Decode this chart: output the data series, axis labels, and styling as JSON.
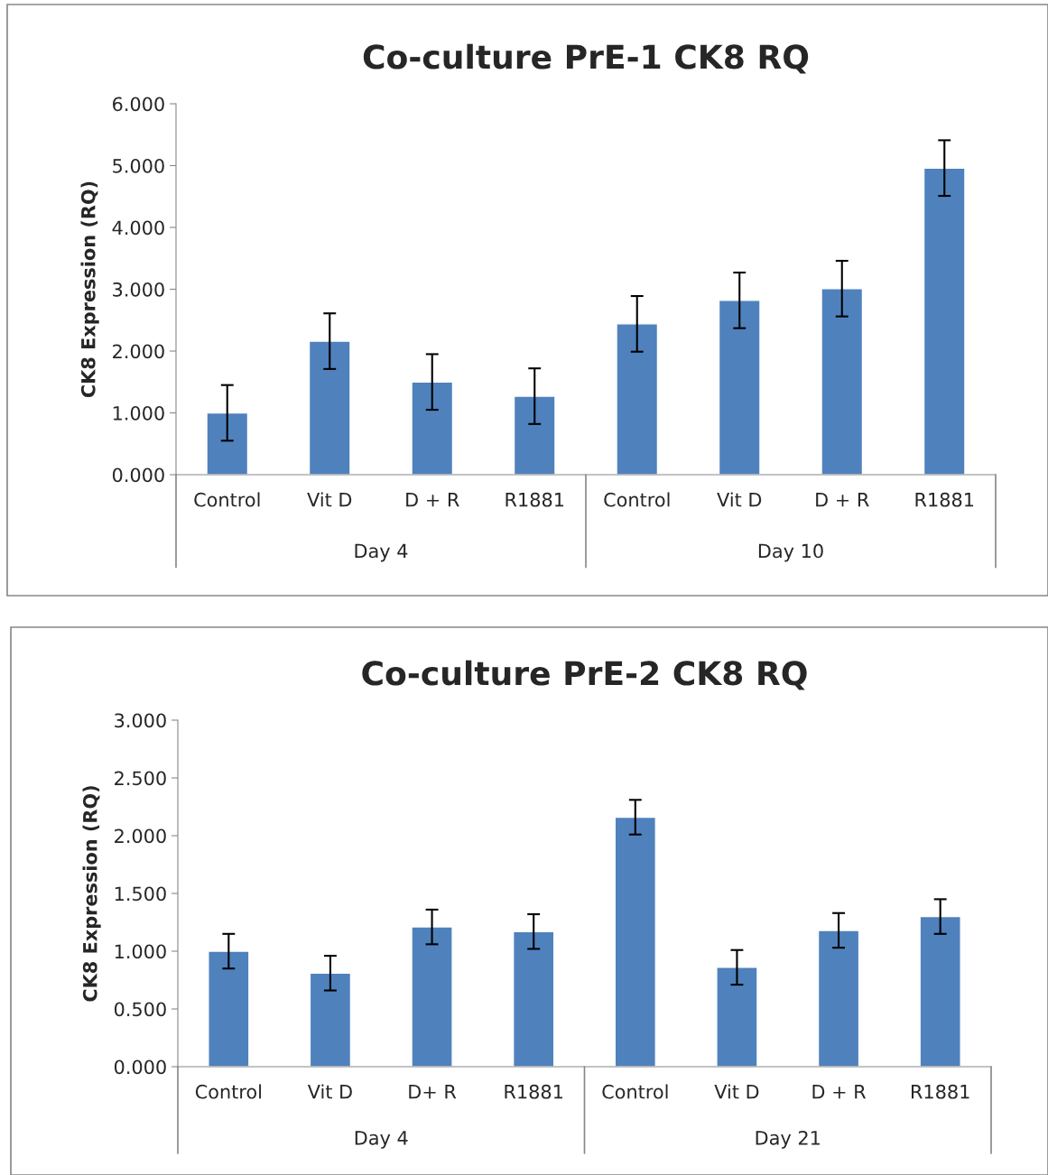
{
  "chart_data": [
    {
      "type": "bar",
      "title": "Co-culture PrE-1 CK8 RQ",
      "ylabel": "CK8 Expression (RQ)",
      "categories": [
        "Control",
        "Vit D",
        "D + R",
        "R1881",
        "Control",
        "Vit D",
        "D + R",
        "R1881"
      ],
      "values": [
        1.0,
        2.16,
        1.5,
        1.27,
        2.44,
        2.82,
        3.01,
        4.96
      ],
      "errors": [
        0.45,
        0.45,
        0.45,
        0.45,
        0.45,
        0.45,
        0.45,
        0.45
      ],
      "color": "#4f81bd",
      "ylim": [
        0,
        6
      ],
      "yticks": [
        {
          "value": 0,
          "label": "0.000"
        },
        {
          "value": 1,
          "label": "1.000"
        },
        {
          "value": 2,
          "label": "2.000"
        },
        {
          "value": 3,
          "label": "3.000"
        },
        {
          "value": 4,
          "label": "4.000"
        },
        {
          "value": 5,
          "label": "5.000"
        },
        {
          "value": 6,
          "label": "6.000"
        }
      ],
      "annotations": [
        "Day 4",
        "Day 10"
      ]
    },
    {
      "type": "bar",
      "title": "Co-culture PrE-2 CK8 RQ",
      "ylabel": "CK8 Expression (RQ)",
      "categories": [
        "Control",
        "Vit D",
        "D+ R",
        "R1881",
        "Control",
        "Vit D",
        "D + R",
        "R1881"
      ],
      "values": [
        1.0,
        0.81,
        1.21,
        1.17,
        2.16,
        0.86,
        1.18,
        1.3
      ],
      "errors": [
        0.15,
        0.15,
        0.15,
        0.15,
        0.15,
        0.15,
        0.15,
        0.15
      ],
      "color": "#4f81bd",
      "ylim": [
        0,
        3
      ],
      "yticks": [
        {
          "value": 0,
          "label": "0.000"
        },
        {
          "value": 0.5,
          "label": "0.500"
        },
        {
          "value": 1,
          "label": "1.000"
        },
        {
          "value": 1.5,
          "label": "1.500"
        },
        {
          "value": 2,
          "label": "2.000"
        },
        {
          "value": 2.5,
          "label": "2.500"
        },
        {
          "value": 3,
          "label": "3.000"
        }
      ],
      "annotations": [
        "Day 4",
        "Day 21"
      ]
    }
  ]
}
